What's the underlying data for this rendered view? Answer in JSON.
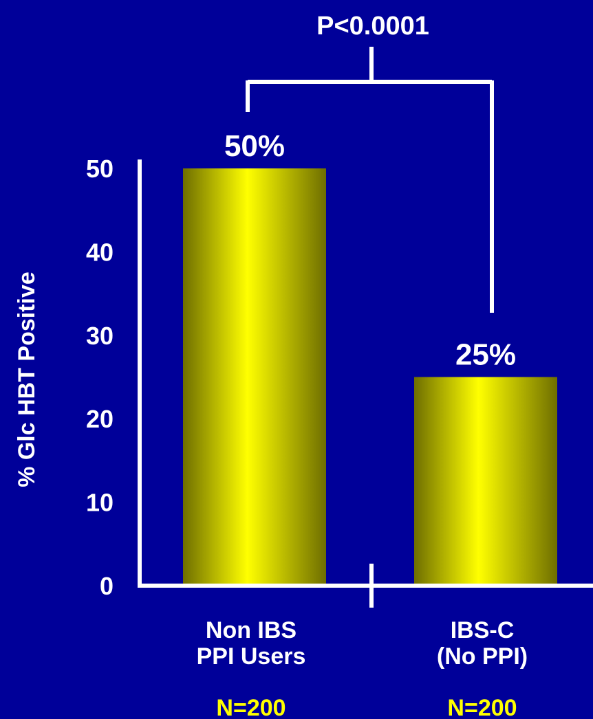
{
  "colors": {
    "background": "#000099",
    "axis": "#ffffff",
    "text": "#ffffff",
    "n_label": "#ffff00",
    "bar_light": "#ffff00",
    "bar_dark": "#6e6e00"
  },
  "chart_data": {
    "type": "bar",
    "title": "",
    "xlabel": "",
    "ylabel": "% Glc HBT Positive",
    "ylim": [
      0,
      50
    ],
    "yticks": [
      "0",
      "10",
      "20",
      "30",
      "40",
      "50"
    ],
    "categories": [
      {
        "lines": [
          "Non IBS",
          "PPI Users"
        ],
        "n": "N=200"
      },
      {
        "lines": [
          "IBS-C",
          "(No PPI)"
        ],
        "n": "N=200"
      }
    ],
    "values": [
      50,
      25
    ],
    "data_labels": [
      "50%",
      "25%"
    ],
    "significance": {
      "label": "P<0.0001",
      "between": [
        0,
        1
      ]
    }
  }
}
